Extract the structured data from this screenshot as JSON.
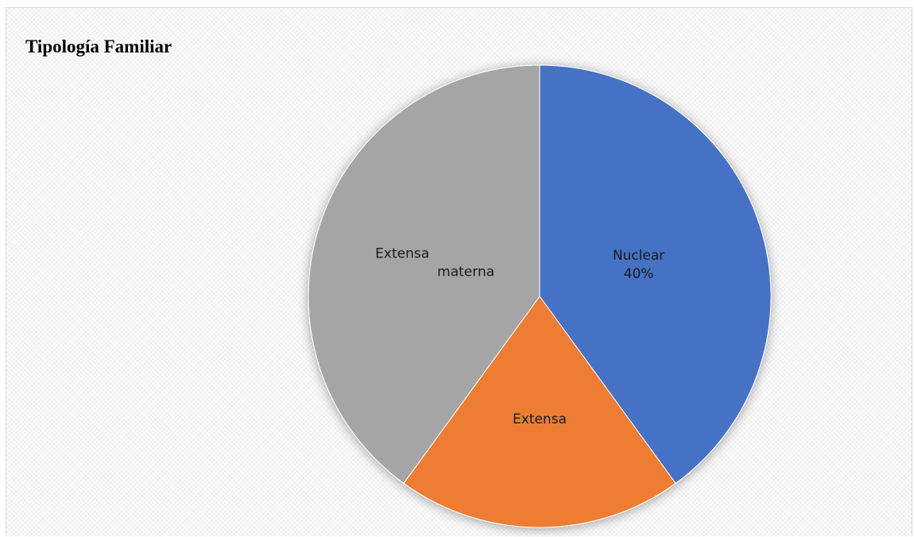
{
  "chart_data": {
    "type": "pie",
    "title": "Tipología Familiar",
    "categories": [
      "Nuclear",
      "Extensa",
      "Extensa materna"
    ],
    "values": [
      40,
      20,
      40
    ],
    "unit": "%",
    "colors": [
      "#4472C4",
      "#ED7D31",
      "#A5A5A5"
    ],
    "data_labels": [
      {
        "lines": [
          "Nuclear",
          "40%"
        ]
      },
      {
        "lines": [
          "Extensa"
        ]
      },
      {
        "lines": [
          "Extensa",
          "materna"
        ]
      }
    ],
    "start_angle_deg": 0,
    "direction": "clockwise",
    "legend": "none"
  }
}
